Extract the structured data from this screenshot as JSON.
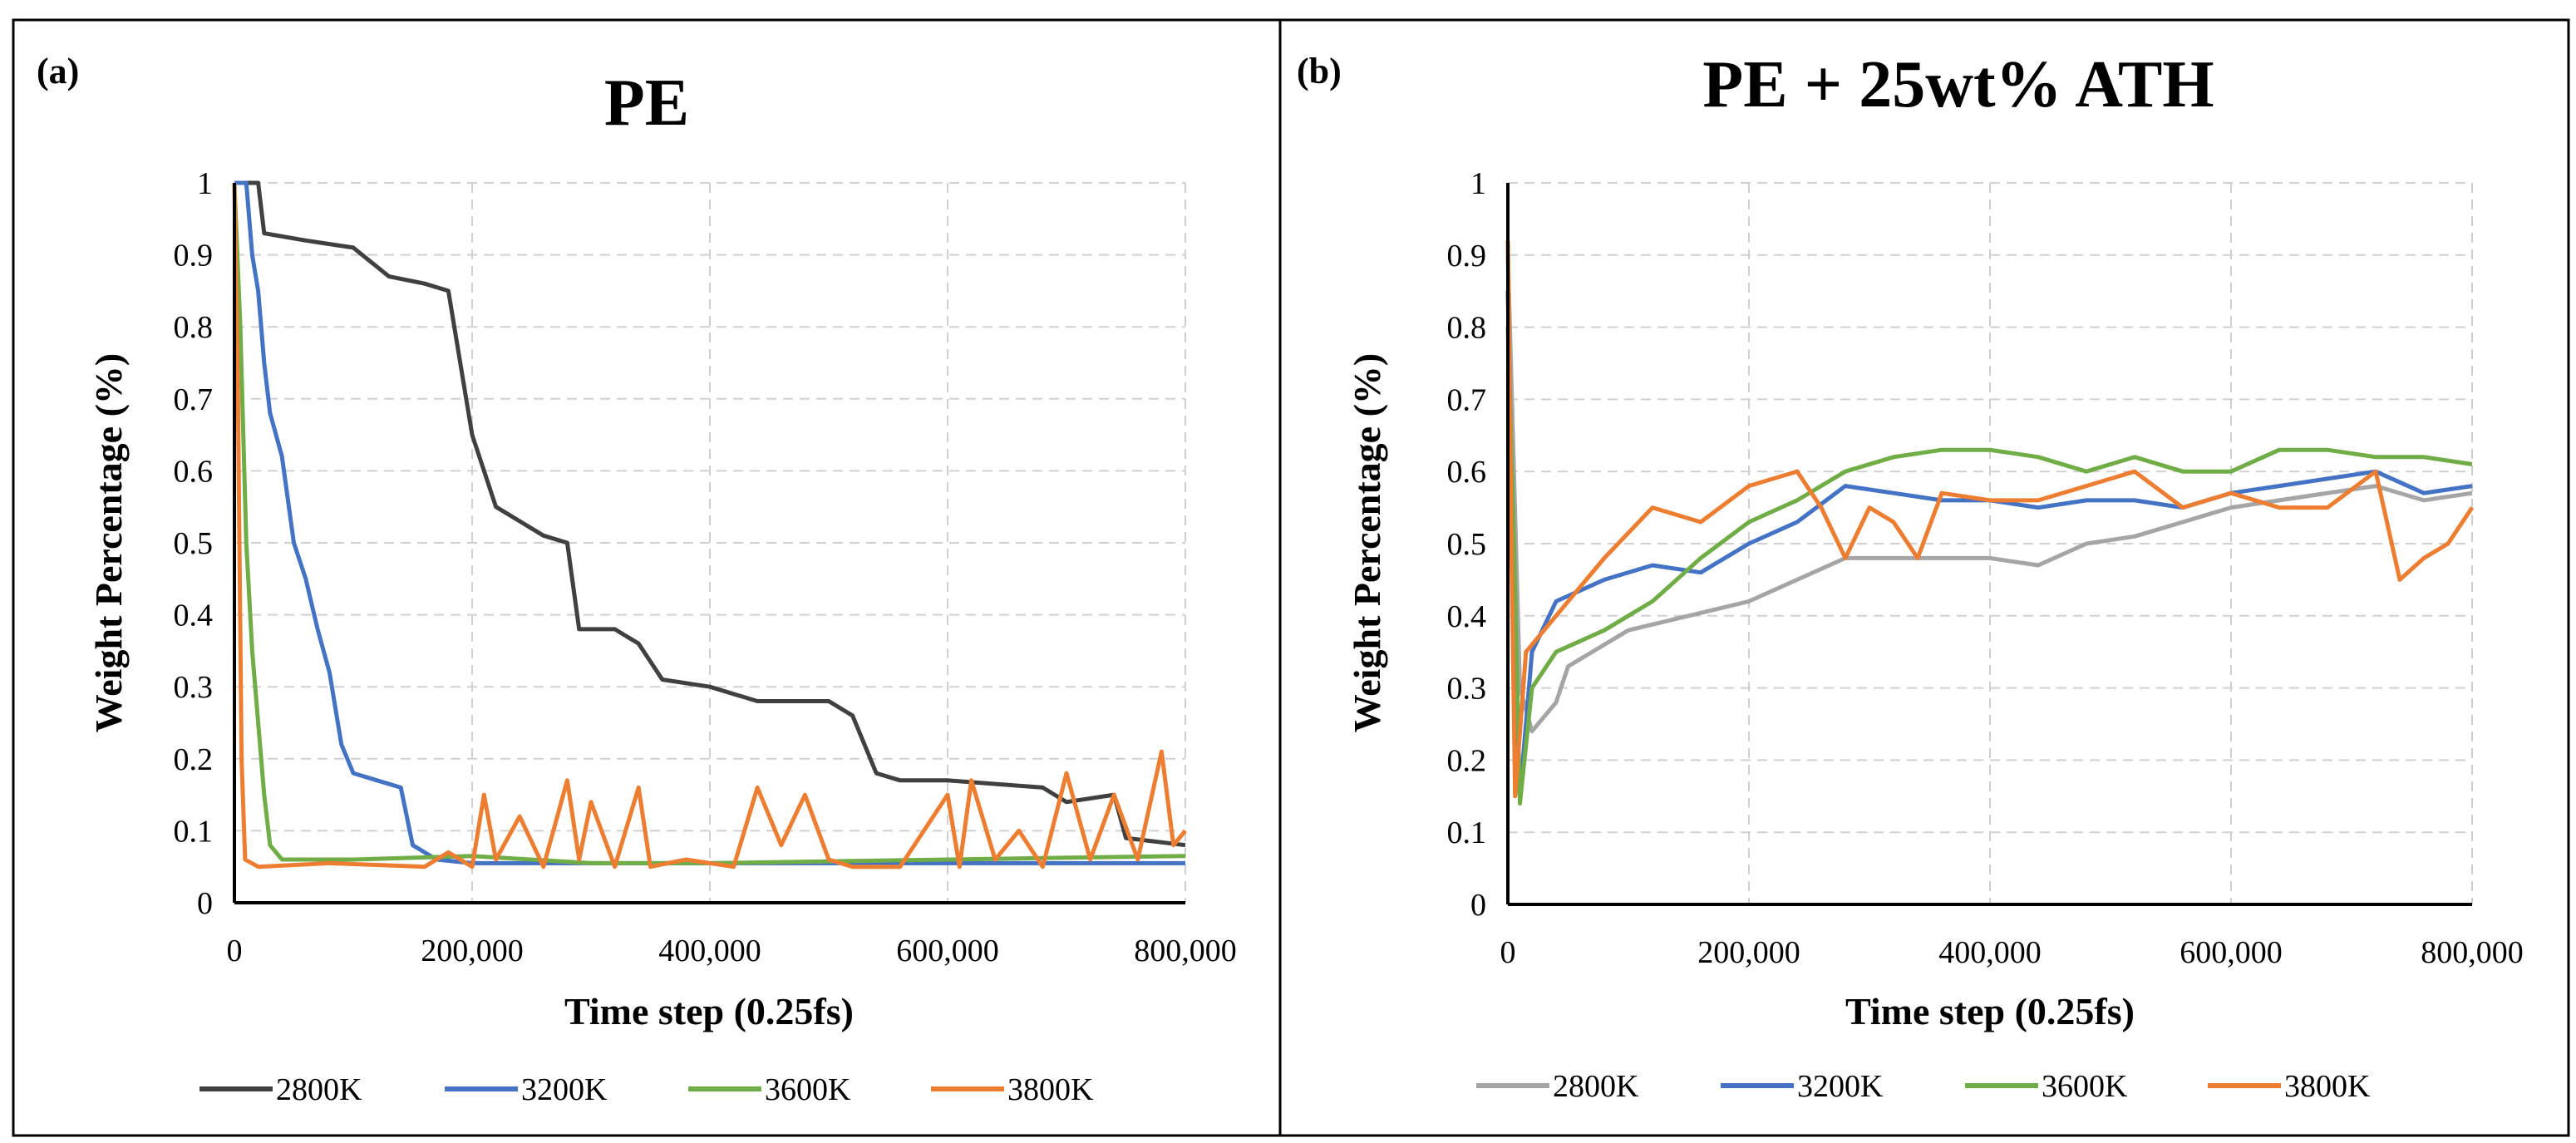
{
  "chart_data": [
    {
      "type": "line",
      "panel_label": "(a)",
      "title": "PE",
      "xlabel": "Time step (0.25fs)",
      "ylabel": "Weight Percentage (%)",
      "xlim": [
        0,
        800000
      ],
      "ylim": [
        0,
        1
      ],
      "x_ticks": [
        "0",
        "200,000",
        "400,000",
        "600,000",
        "800,000"
      ],
      "x_tick_values": [
        0,
        200000,
        400000,
        600000,
        800000
      ],
      "y_ticks": [
        "0",
        "0.1",
        "0.2",
        "0.3",
        "0.4",
        "0.5",
        "0.6",
        "0.7",
        "0.8",
        "0.9",
        "1"
      ],
      "y_tick_values": [
        0,
        0.1,
        0.2,
        0.3,
        0.4,
        0.5,
        0.6,
        0.7,
        0.8,
        0.9,
        1
      ],
      "grid": true,
      "legend_position": "bottom",
      "series": [
        {
          "name": "2800K",
          "color": "#404040",
          "x": [
            0,
            20000,
            25000,
            60000,
            100000,
            130000,
            160000,
            180000,
            190000,
            200000,
            220000,
            240000,
            260000,
            280000,
            290000,
            320000,
            340000,
            360000,
            400000,
            440000,
            500000,
            520000,
            540000,
            560000,
            600000,
            680000,
            700000,
            740000,
            750000,
            800000
          ],
          "y": [
            1,
            1,
            0.93,
            0.92,
            0.91,
            0.87,
            0.86,
            0.85,
            0.75,
            0.65,
            0.55,
            0.53,
            0.51,
            0.5,
            0.38,
            0.38,
            0.36,
            0.31,
            0.3,
            0.28,
            0.28,
            0.26,
            0.18,
            0.17,
            0.17,
            0.16,
            0.14,
            0.15,
            0.09,
            0.08
          ]
        },
        {
          "name": "3200K",
          "color": "#4472c4",
          "x": [
            0,
            10000,
            15000,
            20000,
            25000,
            30000,
            40000,
            50000,
            60000,
            70000,
            80000,
            90000,
            100000,
            120000,
            140000,
            150000,
            170000,
            200000,
            800000
          ],
          "y": [
            1,
            1,
            0.9,
            0.85,
            0.75,
            0.68,
            0.62,
            0.5,
            0.45,
            0.38,
            0.32,
            0.22,
            0.18,
            0.17,
            0.16,
            0.08,
            0.06,
            0.055,
            0.055
          ]
        },
        {
          "name": "3600K",
          "color": "#70ad47",
          "x": [
            0,
            5000,
            10000,
            15000,
            20000,
            25000,
            30000,
            40000,
            100000,
            200000,
            300000,
            400000,
            600000,
            800000
          ],
          "y": [
            1,
            0.8,
            0.5,
            0.35,
            0.25,
            0.15,
            0.08,
            0.06,
            0.06,
            0.065,
            0.055,
            0.055,
            0.06,
            0.065
          ]
        },
        {
          "name": "3800K",
          "color": "#ed7d31",
          "x": [
            0,
            3000,
            6000,
            9000,
            20000,
            80000,
            160000,
            180000,
            200000,
            210000,
            220000,
            240000,
            260000,
            280000,
            290000,
            300000,
            320000,
            340000,
            350000,
            380000,
            420000,
            440000,
            460000,
            480000,
            500000,
            520000,
            560000,
            600000,
            610000,
            620000,
            640000,
            660000,
            680000,
            700000,
            720000,
            740000,
            760000,
            780000,
            790000,
            800000
          ],
          "y": [
            1,
            0.7,
            0.2,
            0.06,
            0.05,
            0.055,
            0.05,
            0.07,
            0.05,
            0.15,
            0.06,
            0.12,
            0.05,
            0.17,
            0.06,
            0.14,
            0.05,
            0.16,
            0.05,
            0.06,
            0.05,
            0.16,
            0.08,
            0.15,
            0.06,
            0.05,
            0.05,
            0.15,
            0.05,
            0.17,
            0.06,
            0.1,
            0.05,
            0.18,
            0.06,
            0.15,
            0.06,
            0.21,
            0.08,
            0.1
          ]
        }
      ]
    },
    {
      "type": "line",
      "panel_label": "(b)",
      "title": "PE + 25wt% ATH",
      "xlabel": "Time step (0.25fs)",
      "ylabel": "Weight Percentage (%)",
      "xlim": [
        0,
        800000
      ],
      "ylim": [
        0,
        1
      ],
      "x_ticks": [
        "0",
        "200,000",
        "400,000",
        "600,000",
        "800,000"
      ],
      "x_tick_values": [
        0,
        200000,
        400000,
        600000,
        800000
      ],
      "y_ticks": [
        "0",
        "0.1",
        "0.2",
        "0.3",
        "0.4",
        "0.5",
        "0.6",
        "0.7",
        "0.8",
        "0.9",
        "1"
      ],
      "y_tick_values": [
        0,
        0.1,
        0.2,
        0.3,
        0.4,
        0.5,
        0.6,
        0.7,
        0.8,
        0.9,
        1
      ],
      "grid": true,
      "legend_position": "bottom",
      "series": [
        {
          "name": "2800K",
          "color": "#a5a5a5",
          "x": [
            0,
            5000,
            10000,
            20000,
            40000,
            50000,
            80000,
            100000,
            150000,
            200000,
            240000,
            280000,
            320000,
            360000,
            400000,
            440000,
            480000,
            520000,
            560000,
            600000,
            640000,
            680000,
            720000,
            760000,
            800000
          ],
          "y": [
            0.9,
            0.6,
            0.3,
            0.24,
            0.28,
            0.33,
            0.36,
            0.38,
            0.4,
            0.42,
            0.45,
            0.48,
            0.48,
            0.48,
            0.48,
            0.47,
            0.5,
            0.51,
            0.53,
            0.55,
            0.56,
            0.57,
            0.58,
            0.56,
            0.57
          ]
        },
        {
          "name": "3200K",
          "color": "#4472c4",
          "x": [
            0,
            5000,
            10000,
            20000,
            40000,
            80000,
            120000,
            160000,
            200000,
            240000,
            280000,
            320000,
            360000,
            400000,
            440000,
            480000,
            520000,
            560000,
            600000,
            640000,
            680000,
            720000,
            760000,
            800000
          ],
          "y": [
            0.85,
            0.4,
            0.15,
            0.35,
            0.42,
            0.45,
            0.47,
            0.46,
            0.5,
            0.53,
            0.58,
            0.57,
            0.56,
            0.56,
            0.55,
            0.56,
            0.56,
            0.55,
            0.57,
            0.58,
            0.59,
            0.6,
            0.57,
            0.58
          ]
        },
        {
          "name": "3600K",
          "color": "#70ad47",
          "x": [
            0,
            5000,
            10000,
            20000,
            40000,
            80000,
            120000,
            160000,
            200000,
            240000,
            280000,
            320000,
            360000,
            400000,
            440000,
            480000,
            520000,
            560000,
            600000,
            640000,
            680000,
            720000,
            760000,
            800000
          ],
          "y": [
            0.8,
            0.5,
            0.14,
            0.3,
            0.35,
            0.38,
            0.42,
            0.48,
            0.53,
            0.56,
            0.6,
            0.62,
            0.63,
            0.63,
            0.62,
            0.6,
            0.62,
            0.6,
            0.6,
            0.63,
            0.63,
            0.62,
            0.62,
            0.61
          ]
        },
        {
          "name": "3800K",
          "color": "#ed7d31",
          "x": [
            0,
            3000,
            6000,
            15000,
            40000,
            80000,
            120000,
            160000,
            200000,
            240000,
            260000,
            280000,
            300000,
            320000,
            340000,
            360000,
            400000,
            440000,
            480000,
            520000,
            560000,
            600000,
            640000,
            680000,
            720000,
            740000,
            760000,
            780000,
            800000
          ],
          "y": [
            0.92,
            0.5,
            0.15,
            0.35,
            0.4,
            0.48,
            0.55,
            0.53,
            0.58,
            0.6,
            0.55,
            0.48,
            0.55,
            0.53,
            0.48,
            0.57,
            0.56,
            0.56,
            0.58,
            0.6,
            0.55,
            0.57,
            0.55,
            0.55,
            0.6,
            0.45,
            0.48,
            0.5,
            0.55
          ]
        }
      ]
    }
  ]
}
